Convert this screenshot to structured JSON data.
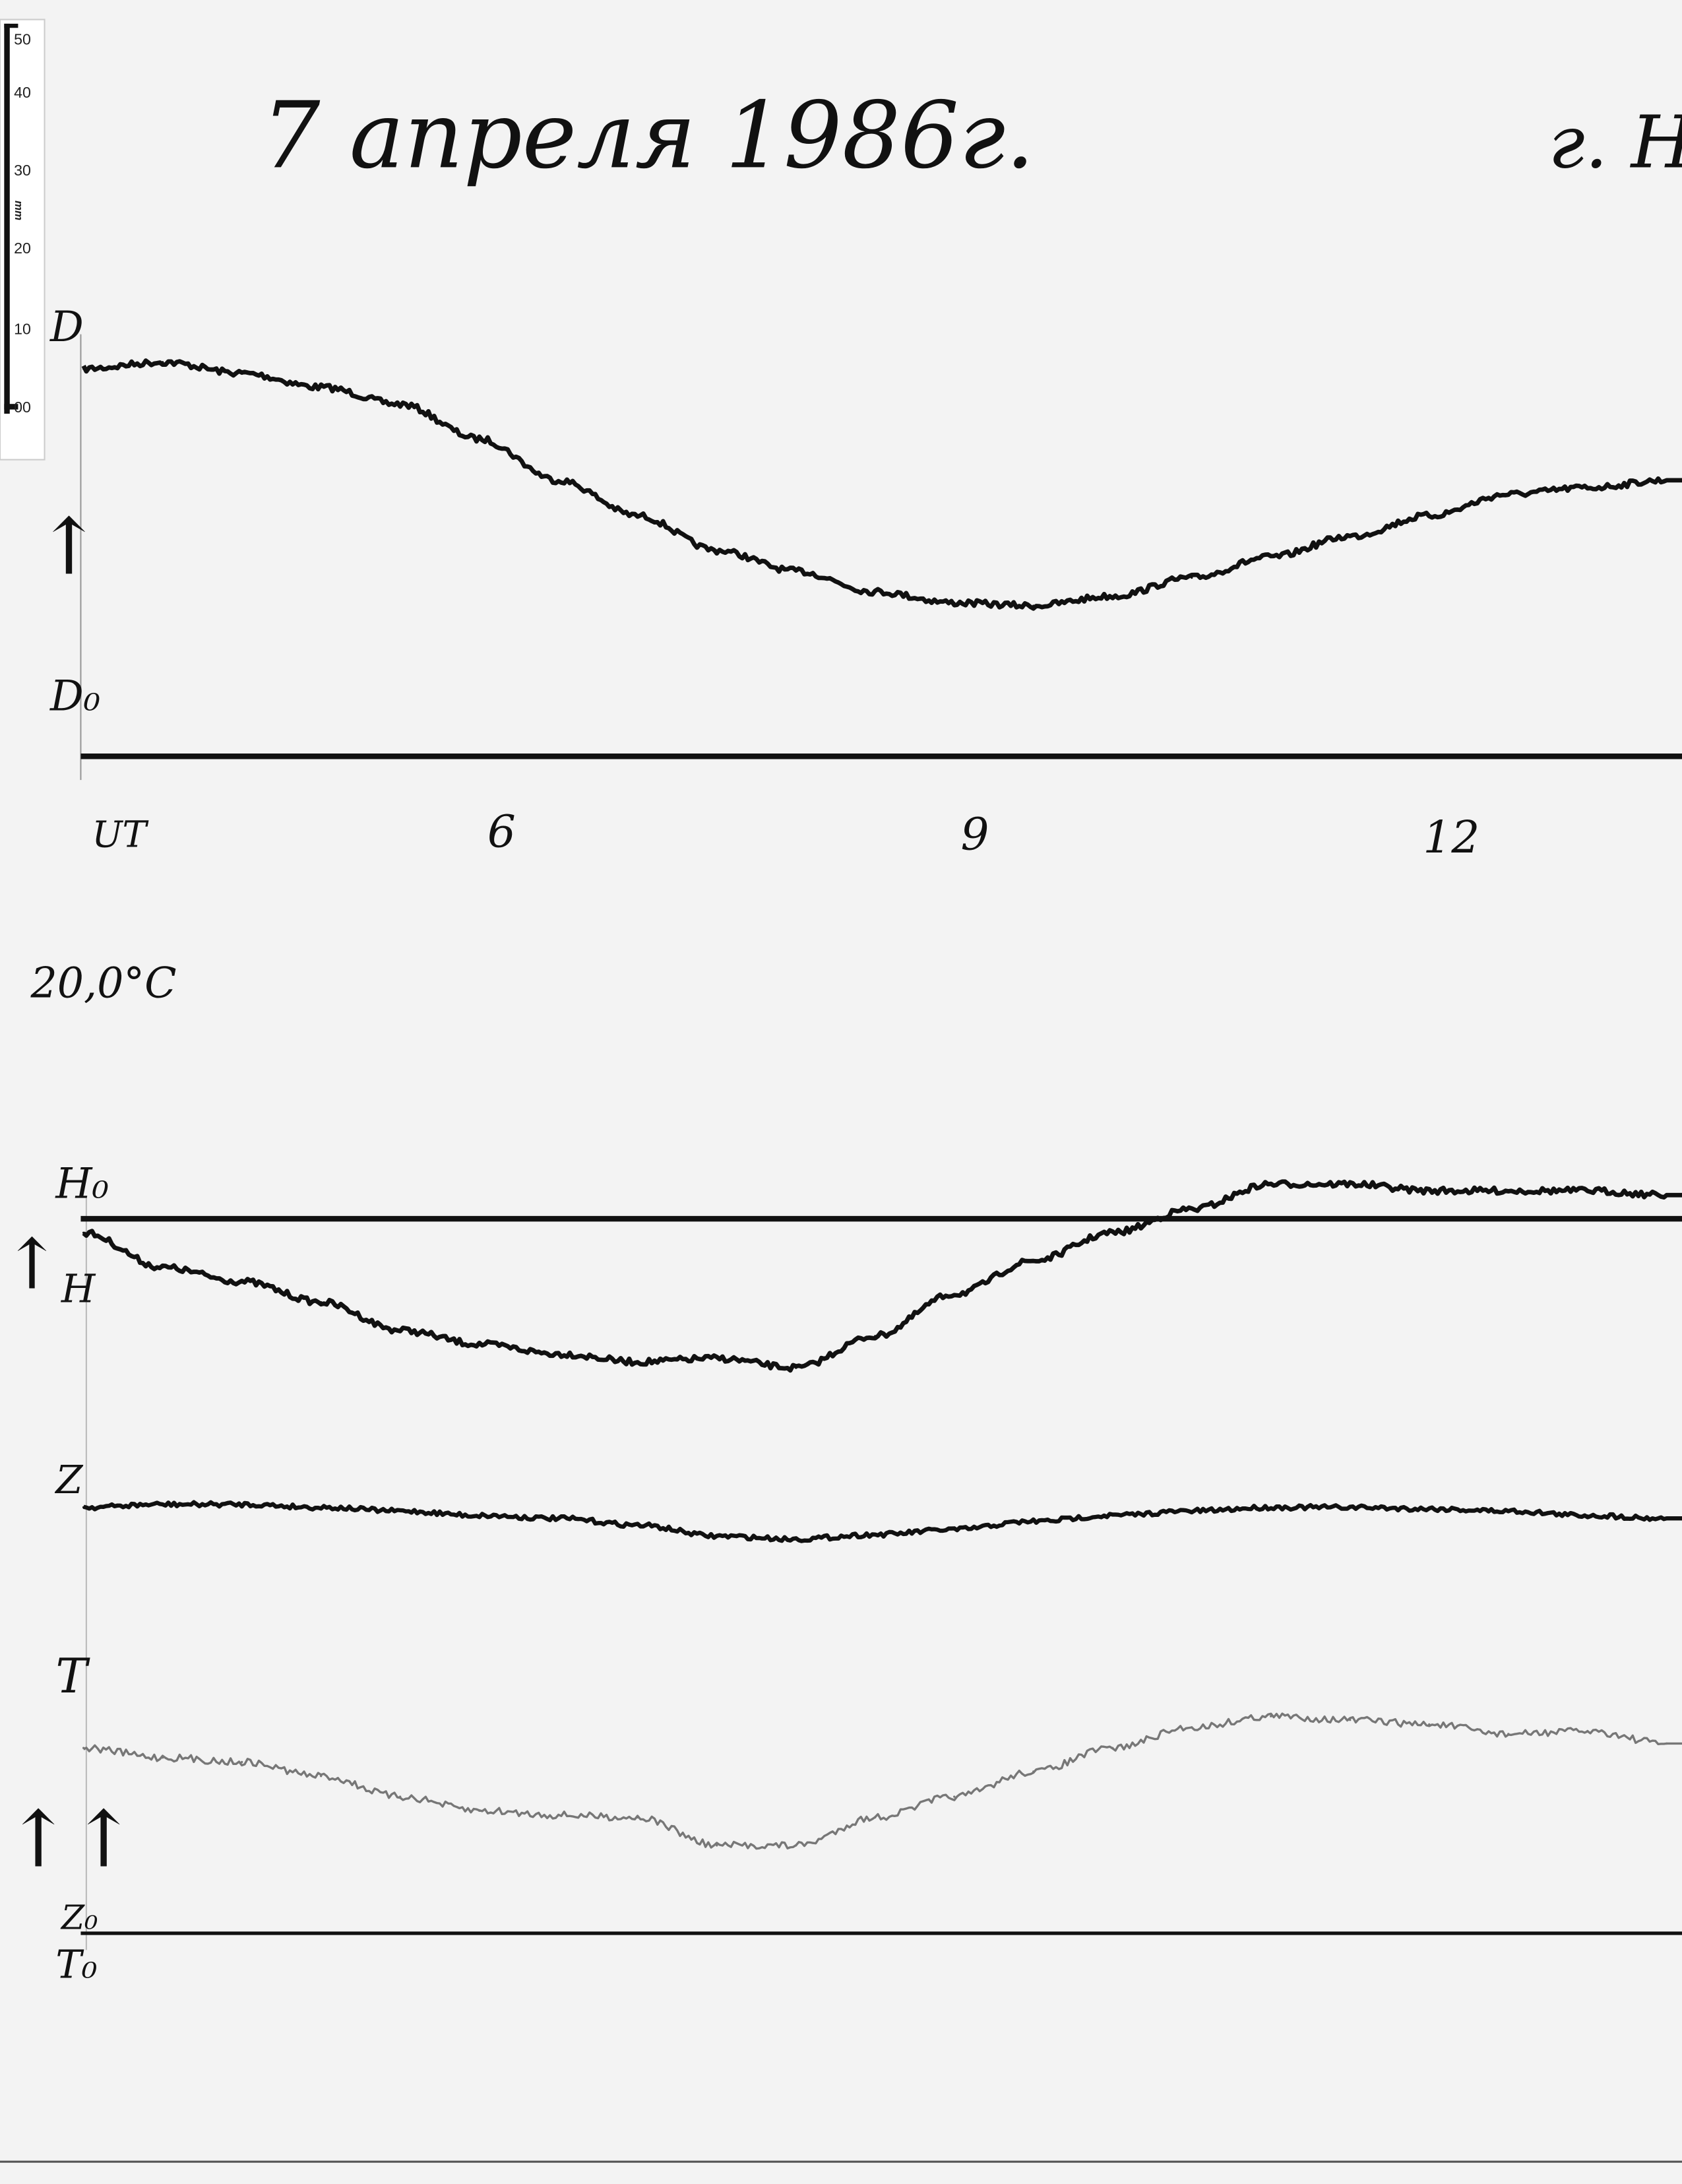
{
  "header": {
    "date": "7 апреля 1986г.",
    "place": "г. Но"
  },
  "ruler": {
    "unit": "mm",
    "ticks": [
      "50",
      "40",
      "30",
      "20",
      "10",
      "00"
    ]
  },
  "labels": {
    "D": "D",
    "D0": "D₀",
    "H0": "H₀",
    "H": "H",
    "Z": "Z",
    "T": "T",
    "Z0": "Z₀",
    "T0": "T₀",
    "temperature": "20,0°C",
    "arrow_single": "↑",
    "arrow_double": "↑↑"
  },
  "chart_data": {
    "type": "line",
    "xlabel": "UT",
    "x_ticks": [
      {
        "value": 6,
        "label": "6"
      },
      {
        "value": 9,
        "label": "9"
      },
      {
        "value": 12,
        "label": "12"
      }
    ],
    "xlim": [
      3,
      13.1
    ],
    "y_units": "mm deflection from baseline (ruler scale)",
    "grid": false,
    "x": [
      3,
      3.5,
      4,
      4.5,
      5,
      5.5,
      6,
      6.5,
      7,
      7.5,
      8,
      8.5,
      9,
      9.5,
      10,
      10.5,
      11,
      11.5,
      12,
      12.5,
      13
    ],
    "series": [
      {
        "name": "D",
        "baseline": "D₀",
        "values": [
          52.5,
          53.4,
          51.9,
          50.0,
          47.7,
          43.0,
          37.4,
          32.6,
          27.9,
          25.1,
          22.3,
          20.8,
          20.4,
          21.7,
          24.2,
          27.0,
          29.8,
          32.6,
          35.5,
          36.4,
          37.4
        ]
      },
      {
        "name": "H",
        "baseline": "H₀",
        "values": [
          -1.9,
          -6.6,
          -8.5,
          -11.3,
          -15.1,
          -17.0,
          -18.3,
          -19.4,
          -18.9,
          -20.2,
          -15.9,
          -10.2,
          -5.7,
          -1.9,
          1.3,
          4.7,
          4.7,
          3.8,
          3.8,
          3.8,
          3.2
        ]
      },
      {
        "name": "Z",
        "baseline": "Z₀",
        "values": [
          57.7,
          58.1,
          58.1,
          57.7,
          57.2,
          56.6,
          56.2,
          55.3,
          53.8,
          53.4,
          54.0,
          54.7,
          55.8,
          56.6,
          57.2,
          57.7,
          57.7,
          57.5,
          57.2,
          56.6,
          56.2
        ]
      },
      {
        "name": "T",
        "baseline": "T₀",
        "values": [
          25.1,
          23.8,
          23.2,
          21.3,
          18.5,
          16.6,
          16.0,
          15.7,
          11.9,
          11.9,
          15.7,
          18.5,
          21.9,
          25.1,
          27.9,
          29.4,
          28.9,
          28.3,
          27.0,
          27.4,
          25.7
        ]
      }
    ],
    "colors": {
      "trace": "#111111",
      "T_trace": "#777777",
      "paper": "#f3f3f3"
    }
  }
}
